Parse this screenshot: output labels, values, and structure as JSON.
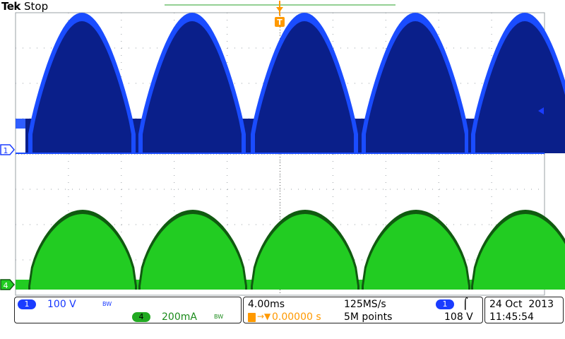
{
  "header": {
    "brand": "Tek",
    "status": "Stop"
  },
  "colors": {
    "ch1": "#0a1f8a",
    "ch1_bright": "#1a4cff",
    "ch1_text": "#1536ff",
    "ch4": "#22cc22",
    "ch4_dark": "#105a10",
    "ch4_text": "#1a8a1a",
    "trigger": "#ff9900",
    "grid": "#9aa0a6"
  },
  "markers": {
    "ch1": "1",
    "ch4": "4",
    "trigger": "T"
  },
  "channel1": {
    "id": "1",
    "scale": "100 V",
    "bw": "BW"
  },
  "channel4": {
    "id": "4",
    "scale": "200mA",
    "bw": "BW"
  },
  "timebase": {
    "scale": "4.00ms",
    "sample_rate": "125MS/s",
    "delay": "0.00000 s",
    "record_length": "5M points"
  },
  "trigger_info": {
    "source": "1",
    "slope": "rising-edge-icon",
    "slope_glyph": "⌠",
    "level": "108 V"
  },
  "datetime": {
    "date": "24 Oct  2013",
    "time": "11:45:54"
  }
}
